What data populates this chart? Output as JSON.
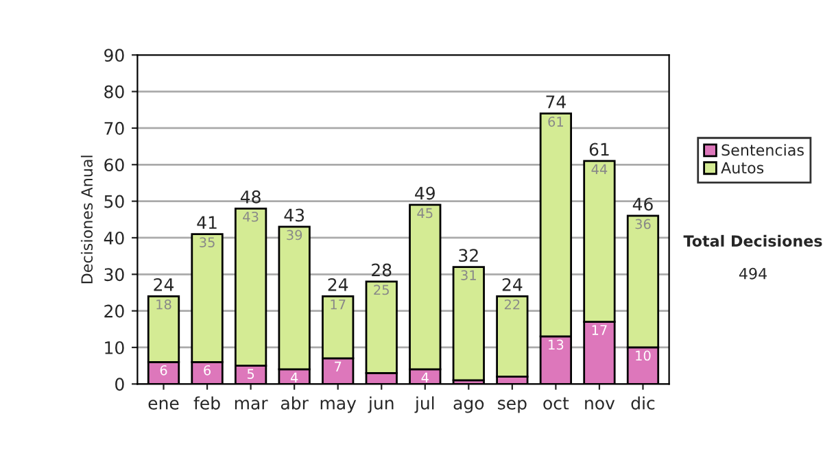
{
  "chart_data": {
    "type": "bar",
    "stacked": true,
    "ylabel": "Decisiones Anual",
    "categories": [
      "ene",
      "feb",
      "mar",
      "abr",
      "may",
      "jun",
      "jul",
      "ago",
      "sep",
      "oct",
      "nov",
      "dic"
    ],
    "series": [
      {
        "name": "Sentencias",
        "color": "#dd77bb",
        "values": [
          6,
          6,
          5,
          4,
          7,
          3,
          4,
          1,
          2,
          13,
          17,
          10
        ],
        "value_labels": [
          "6",
          "6",
          "5",
          "4",
          "7",
          null,
          "4",
          null,
          null,
          "13",
          "17",
          "10"
        ]
      },
      {
        "name": "Autos",
        "color": "#d4eb94",
        "values": [
          18,
          35,
          43,
          39,
          17,
          25,
          45,
          31,
          22,
          61,
          44,
          36
        ],
        "value_labels": [
          "18",
          "35",
          "43",
          "39",
          "17",
          "25",
          "45",
          "31",
          "22",
          "61",
          "44",
          "36"
        ]
      }
    ],
    "totals": [
      "24",
      "41",
      "48",
      "43",
      "24",
      "28",
      "49",
      "32",
      "24",
      "74",
      "61",
      "46"
    ],
    "ylim": [
      0,
      90
    ],
    "yticks": [
      0,
      10,
      20,
      30,
      40,
      50,
      60,
      70,
      80,
      90
    ],
    "grid": "y",
    "legend": "right",
    "annotations": [
      "Total Decisiones",
      "494"
    ]
  }
}
